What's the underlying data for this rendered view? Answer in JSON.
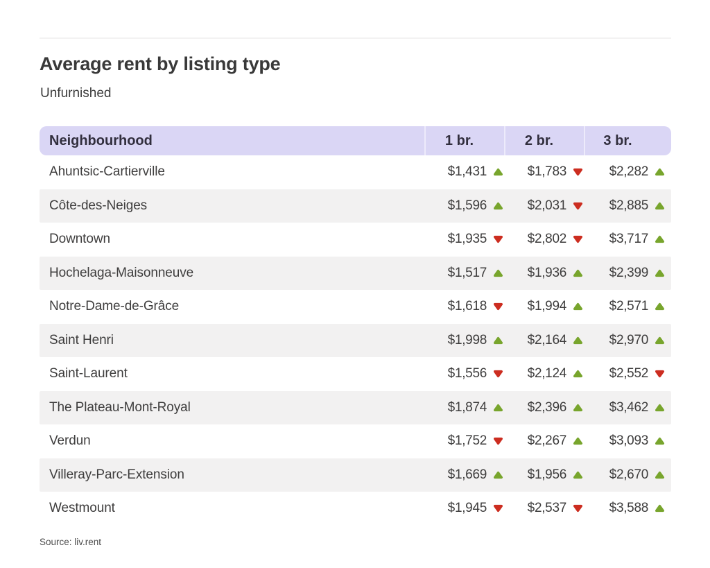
{
  "header": {
    "title": "Average rent by listing type",
    "subtitle": "Unfurnished"
  },
  "table": {
    "columns": [
      "Neighbourhood",
      "1 br.",
      "2 br.",
      "3 br."
    ],
    "rows": [
      {
        "name": "Ahuntsic-Cartierville",
        "values": [
          {
            "price": "$1,431",
            "trend": "up"
          },
          {
            "price": "$1,783",
            "trend": "down"
          },
          {
            "price": "$2,282",
            "trend": "up"
          }
        ]
      },
      {
        "name": "Côte-des-Neiges",
        "values": [
          {
            "price": "$1,596",
            "trend": "up"
          },
          {
            "price": "$2,031",
            "trend": "down"
          },
          {
            "price": "$2,885",
            "trend": "up"
          }
        ]
      },
      {
        "name": "Downtown",
        "values": [
          {
            "price": "$1,935",
            "trend": "down"
          },
          {
            "price": "$2,802",
            "trend": "down"
          },
          {
            "price": "$3,717",
            "trend": "up"
          }
        ]
      },
      {
        "name": "Hochelaga-Maisonneuve",
        "values": [
          {
            "price": "$1,517",
            "trend": "up"
          },
          {
            "price": "$1,936",
            "trend": "up"
          },
          {
            "price": "$2,399",
            "trend": "up"
          }
        ]
      },
      {
        "name": "Notre-Dame-de-Grâce",
        "values": [
          {
            "price": "$1,618",
            "trend": "down"
          },
          {
            "price": "$1,994",
            "trend": "up"
          },
          {
            "price": "$2,571",
            "trend": "up"
          }
        ]
      },
      {
        "name": "Saint Henri",
        "values": [
          {
            "price": "$1,998",
            "trend": "up"
          },
          {
            "price": "$2,164",
            "trend": "up"
          },
          {
            "price": "$2,970",
            "trend": "up"
          }
        ]
      },
      {
        "name": "Saint-Laurent",
        "values": [
          {
            "price": "$1,556",
            "trend": "down"
          },
          {
            "price": "$2,124",
            "trend": "up"
          },
          {
            "price": "$2,552",
            "trend": "down"
          }
        ]
      },
      {
        "name": "The Plateau-Mont-Royal",
        "values": [
          {
            "price": "$1,874",
            "trend": "up"
          },
          {
            "price": "$2,396",
            "trend": "up"
          },
          {
            "price": "$3,462",
            "trend": "up"
          }
        ]
      },
      {
        "name": "Verdun",
        "values": [
          {
            "price": "$1,752",
            "trend": "down"
          },
          {
            "price": "$2,267",
            "trend": "up"
          },
          {
            "price": "$3,093",
            "trend": "up"
          }
        ]
      },
      {
        "name": "Villeray-Parc-Extension",
        "values": [
          {
            "price": "$1,669",
            "trend": "up"
          },
          {
            "price": "$1,956",
            "trend": "up"
          },
          {
            "price": "$2,670",
            "trend": "up"
          }
        ]
      },
      {
        "name": "Westmount",
        "values": [
          {
            "price": "$1,945",
            "trend": "down"
          },
          {
            "price": "$2,537",
            "trend": "down"
          },
          {
            "price": "$3,588",
            "trend": "up"
          }
        ]
      }
    ]
  },
  "footer": {
    "source": "Source: liv.rent"
  },
  "colors": {
    "header_bg": "#dad6f5",
    "header_divider": "#edebfb",
    "row_alt_bg": "#f2f1f1",
    "trend_up": "#78a52d",
    "trend_down": "#cc2d20",
    "text": "#3e3d3d"
  },
  "chart_data": {
    "type": "table",
    "title": "Average rent by listing type",
    "subtitle": "Unfurnished",
    "categories": [
      "Ahuntsic-Cartierville",
      "Côte-des-Neiges",
      "Downtown",
      "Hochelaga-Maisonneuve",
      "Notre-Dame-de-Grâce",
      "Saint Henri",
      "Saint-Laurent",
      "The Plateau-Mont-Royal",
      "Verdun",
      "Villeray-Parc-Extension",
      "Westmount"
    ],
    "series": [
      {
        "name": "1 br.",
        "values": [
          1431,
          1596,
          1935,
          1517,
          1618,
          1998,
          1556,
          1874,
          1752,
          1669,
          1945
        ],
        "trends": [
          "up",
          "up",
          "down",
          "up",
          "down",
          "up",
          "down",
          "up",
          "down",
          "up",
          "down"
        ]
      },
      {
        "name": "2 br.",
        "values": [
          1783,
          2031,
          2802,
          1936,
          1994,
          2164,
          2124,
          2396,
          2267,
          1956,
          2537
        ],
        "trends": [
          "down",
          "down",
          "down",
          "up",
          "up",
          "up",
          "up",
          "up",
          "up",
          "up",
          "down"
        ]
      },
      {
        "name": "3 br.",
        "values": [
          2282,
          2885,
          3717,
          2399,
          2571,
          2970,
          2552,
          3462,
          3093,
          2670,
          3588
        ],
        "trends": [
          "up",
          "up",
          "up",
          "up",
          "up",
          "up",
          "down",
          "up",
          "up",
          "up",
          "up"
        ]
      }
    ],
    "source": "liv.rent"
  }
}
